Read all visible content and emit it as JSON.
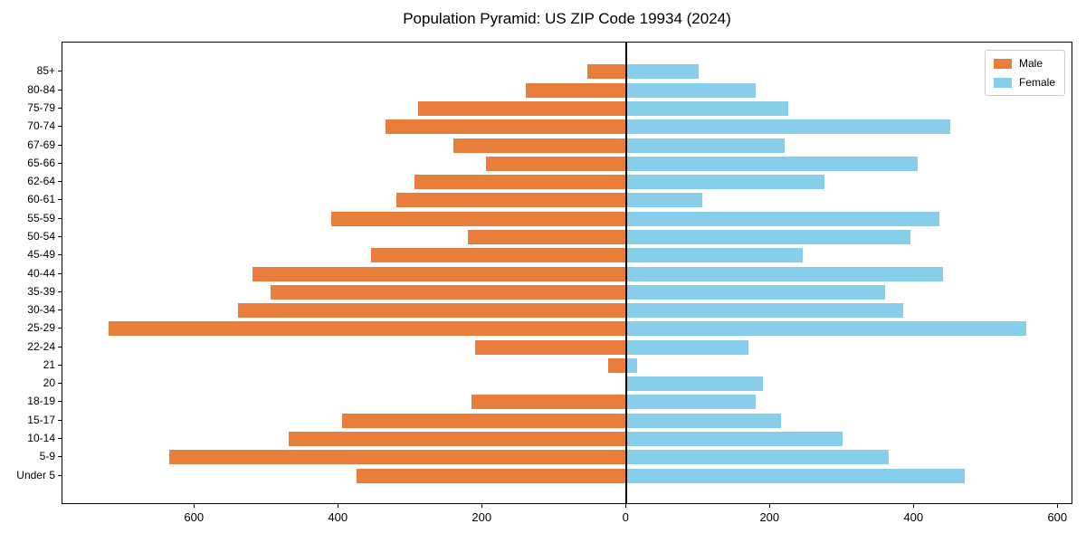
{
  "legend": {
    "male_label": "Male",
    "female_label": "Female"
  },
  "colors": {
    "male": "#e87d3c",
    "female": "#87ceeb",
    "axis": "#000000",
    "background": "#ffffff"
  },
  "chart_data": {
    "type": "bar",
    "subtype": "population-pyramid",
    "title": "Population Pyramid: US ZIP Code 19934 (2024)",
    "xlabel": "",
    "ylabel": "",
    "legend_position": "upper right",
    "grid": false,
    "zero_line": true,
    "categories": [
      "85+",
      "80-84",
      "75-79",
      "70-74",
      "67-69",
      "65-66",
      "62-64",
      "60-61",
      "55-59",
      "50-54",
      "45-49",
      "40-44",
      "35-39",
      "30-34",
      "25-29",
      "22-24",
      "21",
      "20",
      "18-19",
      "15-17",
      "10-14",
      "5-9",
      "Under 5"
    ],
    "series": [
      {
        "name": "Male",
        "side": "left",
        "color": "#e87d3c",
        "values": [
          55,
          140,
          290,
          335,
          240,
          195,
          295,
          320,
          410,
          220,
          355,
          520,
          495,
          540,
          720,
          210,
          25,
          0,
          215,
          395,
          470,
          635,
          375
        ]
      },
      {
        "name": "Female",
        "side": "right",
        "color": "#87ceeb",
        "values": [
          100,
          180,
          225,
          450,
          220,
          405,
          275,
          105,
          435,
          395,
          245,
          440,
          360,
          385,
          555,
          170,
          15,
          190,
          180,
          215,
          300,
          365,
          470
        ]
      }
    ],
    "xticks": [
      -600,
      -400,
      -200,
      0,
      200,
      400,
      600
    ],
    "xtick_labels": [
      "600",
      "400",
      "200",
      "0",
      "200",
      "400",
      "600"
    ],
    "xlim": [
      -784,
      621
    ]
  }
}
